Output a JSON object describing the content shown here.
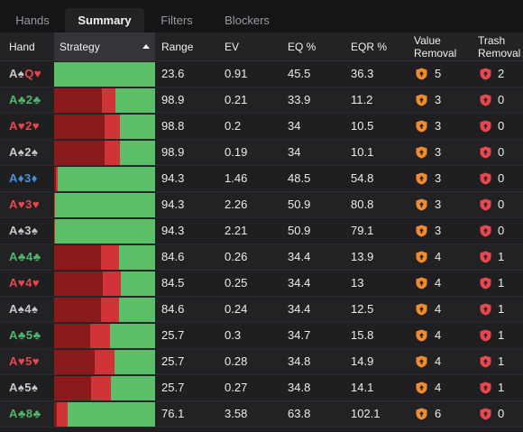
{
  "tabs": [
    "Hands",
    "Summary",
    "Filters",
    "Blockers"
  ],
  "active_tab": 1,
  "columns": {
    "hand": "Hand",
    "strategy": "Strategy",
    "range": "Range",
    "ev": "EV",
    "eq": "EQ %",
    "eqr": "EQR %",
    "value_removal": [
      "Value",
      "Removal"
    ],
    "trash_removal": [
      "Trash",
      "Removal"
    ]
  },
  "colors": {
    "spade": "#c8c8cc",
    "heart": "#e8474e",
    "club": "#4db86a",
    "diamond": "#4a8fe0",
    "strategy_dark_red": "#8b1a1d",
    "strategy_red": "#d13438",
    "strategy_green": "#5bbf6a",
    "value_badge": "#f28a30",
    "trash_badge": "#e8474e"
  },
  "rows": [
    {
      "cards": [
        {
          "r": "A",
          "s": "♠",
          "suit": "spade"
        },
        {
          "r": "Q",
          "s": "♥",
          "suit": "heart"
        }
      ],
      "strategy": [
        0,
        0,
        1
      ],
      "range": "23.6",
      "ev": "0.91",
      "eq": "45.5",
      "eqr": "36.3",
      "vr": "5",
      "tr": "2"
    },
    {
      "cards": [
        {
          "r": "A",
          "s": "♣",
          "suit": "club"
        },
        {
          "r": "2",
          "s": "♣",
          "suit": "club"
        }
      ],
      "strategy": [
        0.47,
        0.14,
        0.39
      ],
      "range": "98.9",
      "ev": "0.21",
      "eq": "33.9",
      "eqr": "11.2",
      "vr": "3",
      "tr": "0"
    },
    {
      "cards": [
        {
          "r": "A",
          "s": "♥",
          "suit": "heart"
        },
        {
          "r": "2",
          "s": "♥",
          "suit": "heart"
        }
      ],
      "strategy": [
        0.5,
        0.15,
        0.35
      ],
      "range": "98.8",
      "ev": "0.2",
      "eq": "34",
      "eqr": "10.5",
      "vr": "3",
      "tr": "0"
    },
    {
      "cards": [
        {
          "r": "A",
          "s": "♠",
          "suit": "spade"
        },
        {
          "r": "2",
          "s": "♠",
          "suit": "spade"
        }
      ],
      "strategy": [
        0.5,
        0.15,
        0.35
      ],
      "range": "98.9",
      "ev": "0.19",
      "eq": "34",
      "eqr": "10.1",
      "vr": "3",
      "tr": "0"
    },
    {
      "cards": [
        {
          "r": "A",
          "s": "♦",
          "suit": "diamond"
        },
        {
          "r": "3",
          "s": "♦",
          "suit": "diamond"
        }
      ],
      "strategy": [
        0.02,
        0.02,
        0.96
      ],
      "range": "94.3",
      "ev": "1.46",
      "eq": "48.5",
      "eqr": "54.8",
      "vr": "3",
      "tr": "0"
    },
    {
      "cards": [
        {
          "r": "A",
          "s": "♥",
          "suit": "heart"
        },
        {
          "r": "3",
          "s": "♥",
          "suit": "heart"
        }
      ],
      "strategy": [
        0,
        0.01,
        0.99
      ],
      "range": "94.3",
      "ev": "2.26",
      "eq": "50.9",
      "eqr": "80.8",
      "vr": "3",
      "tr": "0"
    },
    {
      "cards": [
        {
          "r": "A",
          "s": "♠",
          "suit": "spade"
        },
        {
          "r": "3",
          "s": "♠",
          "suit": "spade"
        }
      ],
      "strategy": [
        0,
        0.01,
        0.99
      ],
      "range": "94.3",
      "ev": "2.21",
      "eq": "50.9",
      "eqr": "79.1",
      "vr": "3",
      "tr": "0"
    },
    {
      "cards": [
        {
          "r": "A",
          "s": "♣",
          "suit": "club"
        },
        {
          "r": "4",
          "s": "♣",
          "suit": "club"
        }
      ],
      "strategy": [
        0.46,
        0.18,
        0.36
      ],
      "range": "84.6",
      "ev": "0.26",
      "eq": "34.4",
      "eqr": "13.9",
      "vr": "4",
      "tr": "1"
    },
    {
      "cards": [
        {
          "r": "A",
          "s": "♥",
          "suit": "heart"
        },
        {
          "r": "4",
          "s": "♥",
          "suit": "heart"
        }
      ],
      "strategy": [
        0.48,
        0.18,
        0.34
      ],
      "range": "84.5",
      "ev": "0.25",
      "eq": "34.4",
      "eqr": "13",
      "vr": "4",
      "tr": "1"
    },
    {
      "cards": [
        {
          "r": "A",
          "s": "♠",
          "suit": "spade"
        },
        {
          "r": "4",
          "s": "♠",
          "suit": "spade"
        }
      ],
      "strategy": [
        0.46,
        0.18,
        0.36
      ],
      "range": "84.6",
      "ev": "0.24",
      "eq": "34.4",
      "eqr": "12.5",
      "vr": "4",
      "tr": "1"
    },
    {
      "cards": [
        {
          "r": "A",
          "s": "♣",
          "suit": "club"
        },
        {
          "r": "5",
          "s": "♣",
          "suit": "club"
        }
      ],
      "strategy": [
        0.36,
        0.19,
        0.45
      ],
      "range": "25.7",
      "ev": "0.3",
      "eq": "34.7",
      "eqr": "15.8",
      "vr": "4",
      "tr": "1"
    },
    {
      "cards": [
        {
          "r": "A",
          "s": "♥",
          "suit": "heart"
        },
        {
          "r": "5",
          "s": "♥",
          "suit": "heart"
        }
      ],
      "strategy": [
        0.4,
        0.2,
        0.4
      ],
      "range": "25.7",
      "ev": "0.28",
      "eq": "34.8",
      "eqr": "14.9",
      "vr": "4",
      "tr": "1"
    },
    {
      "cards": [
        {
          "r": "A",
          "s": "♠",
          "suit": "spade"
        },
        {
          "r": "5",
          "s": "♠",
          "suit": "spade"
        }
      ],
      "strategy": [
        0.37,
        0.19,
        0.44
      ],
      "range": "25.7",
      "ev": "0.27",
      "eq": "34.8",
      "eqr": "14.1",
      "vr": "4",
      "tr": "1"
    },
    {
      "cards": [
        {
          "r": "A",
          "s": "♣",
          "suit": "club"
        },
        {
          "r": "8",
          "s": "♣",
          "suit": "club"
        }
      ],
      "strategy": [
        0.03,
        0.1,
        0.87
      ],
      "range": "76.1",
      "ev": "3.58",
      "eq": "63.8",
      "eqr": "102.1",
      "vr": "6",
      "tr": "0"
    }
  ]
}
